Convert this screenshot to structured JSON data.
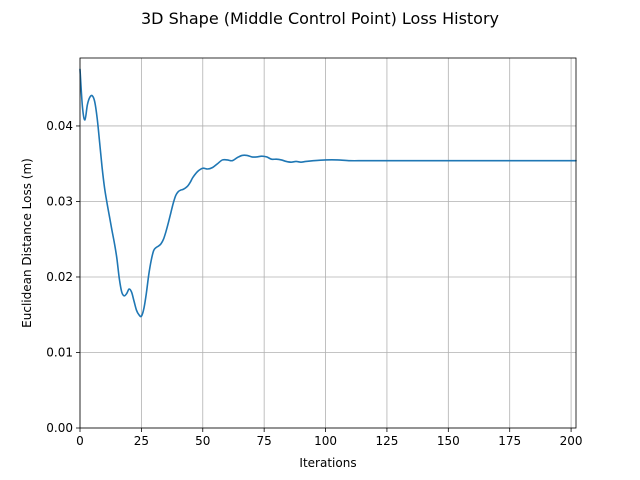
{
  "chart_data": {
    "type": "line",
    "title": "3D Shape (Middle Control Point) Loss History",
    "xlabel": "Iterations",
    "ylabel": "Euclidean Distance Loss (m)",
    "xlim": [
      0,
      202
    ],
    "ylim": [
      0,
      0.049
    ],
    "xticks": [
      0,
      25,
      50,
      75,
      100,
      125,
      150,
      175,
      200
    ],
    "yticks": [
      0.0,
      0.01,
      0.02,
      0.03,
      0.04
    ],
    "xtick_labels": [
      "0",
      "25",
      "50",
      "75",
      "100",
      "125",
      "150",
      "175",
      "200"
    ],
    "ytick_labels": [
      "0.00",
      "0.01",
      "0.02",
      "0.03",
      "0.04"
    ],
    "grid": true,
    "legend": "none",
    "series": [
      {
        "color": "#1f77b4",
        "x": [
          0,
          1,
          2,
          3,
          4,
          5,
          6,
          7,
          8,
          9,
          10,
          11,
          12,
          13,
          14,
          15,
          16,
          17,
          18,
          19,
          20,
          21,
          22,
          23,
          24,
          25,
          26,
          27,
          28,
          29,
          30,
          31,
          32,
          33,
          34,
          35,
          36,
          37,
          38,
          39,
          40,
          41,
          42,
          43,
          44,
          45,
          46,
          48,
          50,
          52,
          54,
          56,
          58,
          60,
          62,
          64,
          66,
          68,
          70,
          72,
          74,
          76,
          78,
          80,
          82,
          84,
          86,
          88,
          90,
          92,
          95,
          100,
          105,
          110,
          115,
          120,
          125,
          130,
          140,
          150,
          160,
          175,
          190,
          202
        ],
        "values": [
          0.0475,
          0.0425,
          0.0408,
          0.0428,
          0.0438,
          0.044,
          0.0432,
          0.041,
          0.0378,
          0.0345,
          0.0318,
          0.0298,
          0.028,
          0.0262,
          0.0245,
          0.0225,
          0.0198,
          0.018,
          0.0175,
          0.0178,
          0.0184,
          0.018,
          0.0168,
          0.0156,
          0.015,
          0.0148,
          0.0158,
          0.0178,
          0.0203,
          0.0222,
          0.0235,
          0.0239,
          0.0241,
          0.0244,
          0.025,
          0.026,
          0.0272,
          0.0285,
          0.0298,
          0.0308,
          0.0313,
          0.0315,
          0.0316,
          0.0318,
          0.0321,
          0.0326,
          0.0332,
          0.034,
          0.0344,
          0.0343,
          0.0345,
          0.035,
          0.0355,
          0.0355,
          0.0354,
          0.0358,
          0.0361,
          0.0361,
          0.0359,
          0.0359,
          0.036,
          0.0359,
          0.0356,
          0.0356,
          0.0355,
          0.0353,
          0.0352,
          0.0353,
          0.0352,
          0.0353,
          0.0354,
          0.0355,
          0.0355,
          0.0354,
          0.0354,
          0.0354,
          0.0354,
          0.0354,
          0.0354,
          0.0354,
          0.0354,
          0.0354,
          0.0354,
          0.0354
        ]
      }
    ]
  }
}
